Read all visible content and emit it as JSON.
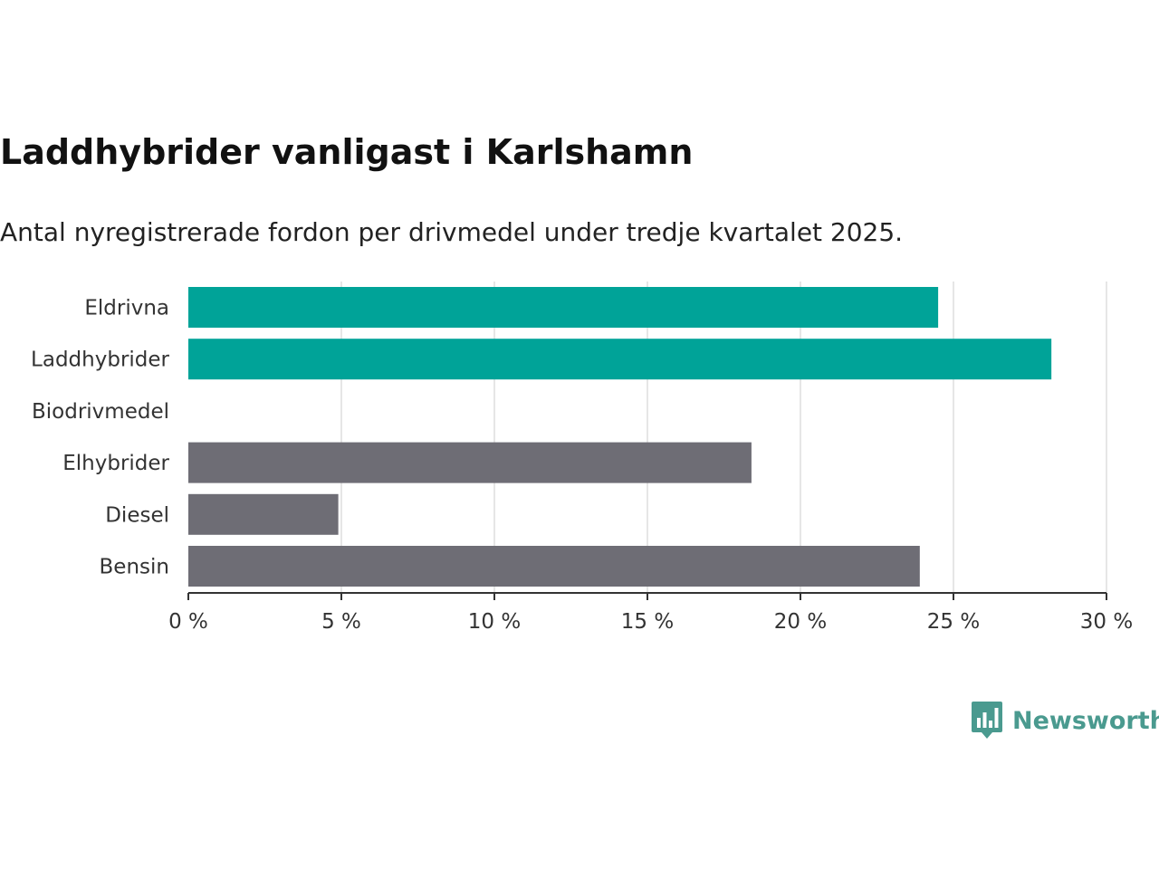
{
  "chart_data": {
    "type": "bar",
    "orientation": "horizontal",
    "title": "Laddhybrider vanligast i Karlshamn",
    "subtitle": "Antal nyregistrerade fordon per drivmedel under tredje kvartalet 2025.",
    "categories": [
      "Eldrivna",
      "Laddhybrider",
      "Biodrivmedel",
      "Elhybrider",
      "Diesel",
      "Bensin"
    ],
    "values": [
      24.5,
      28.2,
      0,
      18.4,
      4.9,
      23.9
    ],
    "colors": [
      "#00a398",
      "#00a398",
      "#00a398",
      "#6e6d75",
      "#6e6d75",
      "#6e6d75"
    ],
    "xlim": [
      0,
      30
    ],
    "xticks": [
      0,
      5,
      10,
      15,
      20,
      25,
      30
    ],
    "xtick_labels": [
      "0 %",
      "5 %",
      "10 %",
      "15 %",
      "20 %",
      "25 %",
      "30 %"
    ],
    "grid": true,
    "xlabel": "",
    "ylabel": ""
  },
  "brand": {
    "name": "Newsworthy",
    "icon": "bar-chart-speech-bubble-icon",
    "color": "#4a9a8f"
  }
}
